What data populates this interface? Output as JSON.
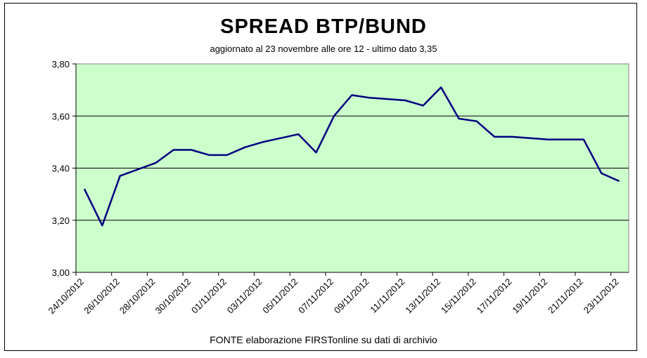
{
  "chart_data": {
    "type": "line",
    "title": "SPREAD  BTP/BUND",
    "subtitle": "aggiornato al 23 novembre alle ore 12 - ultimo dato 3,35",
    "source": "FONTE elaborazione FIRSTonline su dati di archivio",
    "xlabel": "",
    "ylabel": "",
    "ylim": [
      3.0,
      3.8
    ],
    "y_ticks": [
      "3,00",
      "3,20",
      "3,40",
      "3,60",
      "3,80"
    ],
    "categories": [
      "24/10/2012",
      "26/10/2012",
      "28/10/2012",
      "30/10/2012",
      "01/11/2012",
      "03/11/2012",
      "05/11/2012",
      "07/11/2012",
      "09/11/2012",
      "11/11/2012",
      "13/11/2012",
      "15/11/2012",
      "17/11/2012",
      "19/11/2012",
      "21/11/2012",
      "23/11/2012"
    ],
    "series": [
      {
        "x": [
          "24/10/2012",
          "25/10/2012",
          "26/10/2012",
          "28/10/2012",
          "29/10/2012",
          "30/10/2012",
          "31/10/2012",
          "01/11/2012",
          "02/11/2012",
          "03/11/2012",
          "05/11/2012",
          "06/11/2012",
          "07/11/2012",
          "08/11/2012",
          "09/11/2012",
          "11/11/2012",
          "12/11/2012",
          "13/11/2012",
          "14/11/2012",
          "15/11/2012",
          "16/11/2012",
          "17/11/2012",
          "19/11/2012",
          "20/11/2012",
          "21/11/2012",
          "22/11/2012",
          "23/11/2012"
        ],
        "values": [
          3.32,
          3.18,
          3.37,
          3.42,
          3.47,
          3.47,
          3.45,
          3.45,
          3.48,
          3.5,
          3.53,
          3.46,
          3.6,
          3.68,
          3.67,
          3.66,
          3.64,
          3.71,
          3.59,
          3.58,
          3.52,
          3.52,
          3.51,
          3.51,
          3.51,
          3.38,
          3.35
        ]
      }
    ],
    "grid": true,
    "colors": {
      "plot_background": "#ccffcc",
      "line": "#000080",
      "grid": "#000000"
    }
  }
}
